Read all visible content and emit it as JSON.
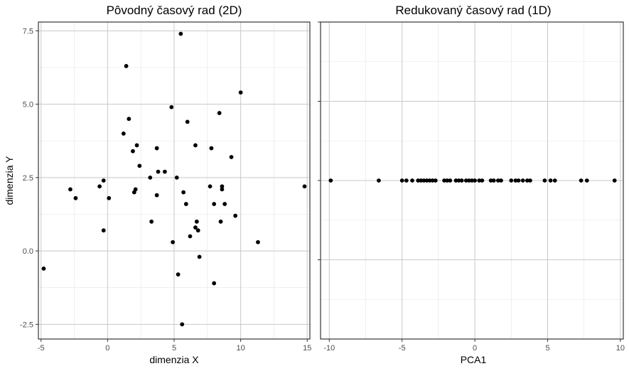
{
  "chart_data": [
    {
      "type": "scatter",
      "title": "Pôvodný časový rad (2D)",
      "xlabel": "dimenzia X",
      "ylabel": "dimenzia Y",
      "xlim": [
        -5.2,
        15.2
      ],
      "ylim": [
        -3.0,
        7.8
      ],
      "xticks": [
        -5,
        0,
        5,
        10,
        15
      ],
      "xtick_labels": [
        "-5",
        "0",
        "5",
        "10",
        "15"
      ],
      "yticks": [
        -2.5,
        0.0,
        2.5,
        5.0,
        7.5
      ],
      "ytick_labels": [
        "-2.5",
        "0.0",
        "2.5",
        "5.0",
        "7.5"
      ],
      "grid": true,
      "points": [
        {
          "x": -4.8,
          "y": -0.6
        },
        {
          "x": -2.8,
          "y": 2.1
        },
        {
          "x": -2.4,
          "y": 1.8
        },
        {
          "x": -0.6,
          "y": 2.2
        },
        {
          "x": -0.3,
          "y": 2.4
        },
        {
          "x": -0.3,
          "y": 0.7
        },
        {
          "x": 0.1,
          "y": 1.8
        },
        {
          "x": 1.2,
          "y": 4.0
        },
        {
          "x": 1.4,
          "y": 6.3
        },
        {
          "x": 1.6,
          "y": 4.5
        },
        {
          "x": 1.9,
          "y": 3.4
        },
        {
          "x": 2.0,
          "y": 2.0
        },
        {
          "x": 2.1,
          "y": 2.1
        },
        {
          "x": 2.2,
          "y": 3.6
        },
        {
          "x": 2.4,
          "y": 2.9
        },
        {
          "x": 3.2,
          "y": 2.5
        },
        {
          "x": 3.3,
          "y": 1.0
        },
        {
          "x": 3.7,
          "y": 3.5
        },
        {
          "x": 3.7,
          "y": 1.9
        },
        {
          "x": 3.8,
          "y": 2.7
        },
        {
          "x": 4.3,
          "y": 2.7
        },
        {
          "x": 4.8,
          "y": 4.9
        },
        {
          "x": 4.9,
          "y": 0.3
        },
        {
          "x": 5.2,
          "y": 2.5
        },
        {
          "x": 5.3,
          "y": -0.8
        },
        {
          "x": 5.5,
          "y": 7.4
        },
        {
          "x": 5.6,
          "y": -2.5
        },
        {
          "x": 5.7,
          "y": 2.0
        },
        {
          "x": 5.9,
          "y": 1.6
        },
        {
          "x": 6.0,
          "y": 4.4
        },
        {
          "x": 6.2,
          "y": 0.5
        },
        {
          "x": 6.6,
          "y": 3.6
        },
        {
          "x": 6.6,
          "y": 0.8
        },
        {
          "x": 6.7,
          "y": 1.0
        },
        {
          "x": 6.8,
          "y": 0.7
        },
        {
          "x": 6.9,
          "y": -0.2
        },
        {
          "x": 7.7,
          "y": 2.2
        },
        {
          "x": 7.8,
          "y": 3.5
        },
        {
          "x": 8.0,
          "y": 1.6
        },
        {
          "x": 8.0,
          "y": -1.1
        },
        {
          "x": 8.4,
          "y": 4.7
        },
        {
          "x": 8.5,
          "y": 1.0
        },
        {
          "x": 8.6,
          "y": 2.1
        },
        {
          "x": 8.6,
          "y": 2.2
        },
        {
          "x": 8.8,
          "y": 1.6
        },
        {
          "x": 9.3,
          "y": 3.2
        },
        {
          "x": 9.6,
          "y": 1.2
        },
        {
          "x": 10.0,
          "y": 5.4
        },
        {
          "x": 11.3,
          "y": 0.3
        },
        {
          "x": 14.8,
          "y": 2.2
        }
      ]
    },
    {
      "type": "scatter",
      "title": "Redukovaný časový rad (1D)",
      "xlabel": "PCA1",
      "ylabel": "",
      "xlim": [
        -10.6,
        10.2
      ],
      "ylim": [
        -1,
        1
      ],
      "xticks": [
        -10,
        -5,
        0,
        5,
        10
      ],
      "xtick_labels": [
        "-10",
        "-5",
        "0",
        "5",
        "10"
      ],
      "yticks_unlabeled": [
        -0.5,
        0.0,
        0.5,
        1.0
      ],
      "grid": true,
      "points": [
        {
          "x": -9.9,
          "y": 0
        },
        {
          "x": -6.6,
          "y": 0
        },
        {
          "x": -5.0,
          "y": 0
        },
        {
          "x": -4.7,
          "y": 0
        },
        {
          "x": -4.3,
          "y": 0
        },
        {
          "x": -3.9,
          "y": 0
        },
        {
          "x": -3.7,
          "y": 0
        },
        {
          "x": -3.5,
          "y": 0
        },
        {
          "x": -3.3,
          "y": 0
        },
        {
          "x": -3.1,
          "y": 0
        },
        {
          "x": -2.9,
          "y": 0
        },
        {
          "x": -2.7,
          "y": 0
        },
        {
          "x": -2.1,
          "y": 0
        },
        {
          "x": -1.9,
          "y": 0
        },
        {
          "x": -1.7,
          "y": 0
        },
        {
          "x": -1.3,
          "y": 0
        },
        {
          "x": -1.1,
          "y": 0
        },
        {
          "x": -0.9,
          "y": 0
        },
        {
          "x": -0.6,
          "y": 0
        },
        {
          "x": -0.4,
          "y": 0
        },
        {
          "x": -0.2,
          "y": 0
        },
        {
          "x": 0.0,
          "y": 0
        },
        {
          "x": 0.3,
          "y": 0
        },
        {
          "x": 0.5,
          "y": 0
        },
        {
          "x": 1.1,
          "y": 0
        },
        {
          "x": 1.3,
          "y": 0
        },
        {
          "x": 1.6,
          "y": 0
        },
        {
          "x": 1.8,
          "y": 0
        },
        {
          "x": 2.5,
          "y": 0
        },
        {
          "x": 2.8,
          "y": 0
        },
        {
          "x": 3.0,
          "y": 0
        },
        {
          "x": 3.3,
          "y": 0
        },
        {
          "x": 3.6,
          "y": 0
        },
        {
          "x": 3.8,
          "y": 0
        },
        {
          "x": 4.8,
          "y": 0
        },
        {
          "x": 5.2,
          "y": 0
        },
        {
          "x": 5.5,
          "y": 0
        },
        {
          "x": 7.3,
          "y": 0
        },
        {
          "x": 7.7,
          "y": 0
        },
        {
          "x": 9.6,
          "y": 0
        }
      ]
    }
  ]
}
